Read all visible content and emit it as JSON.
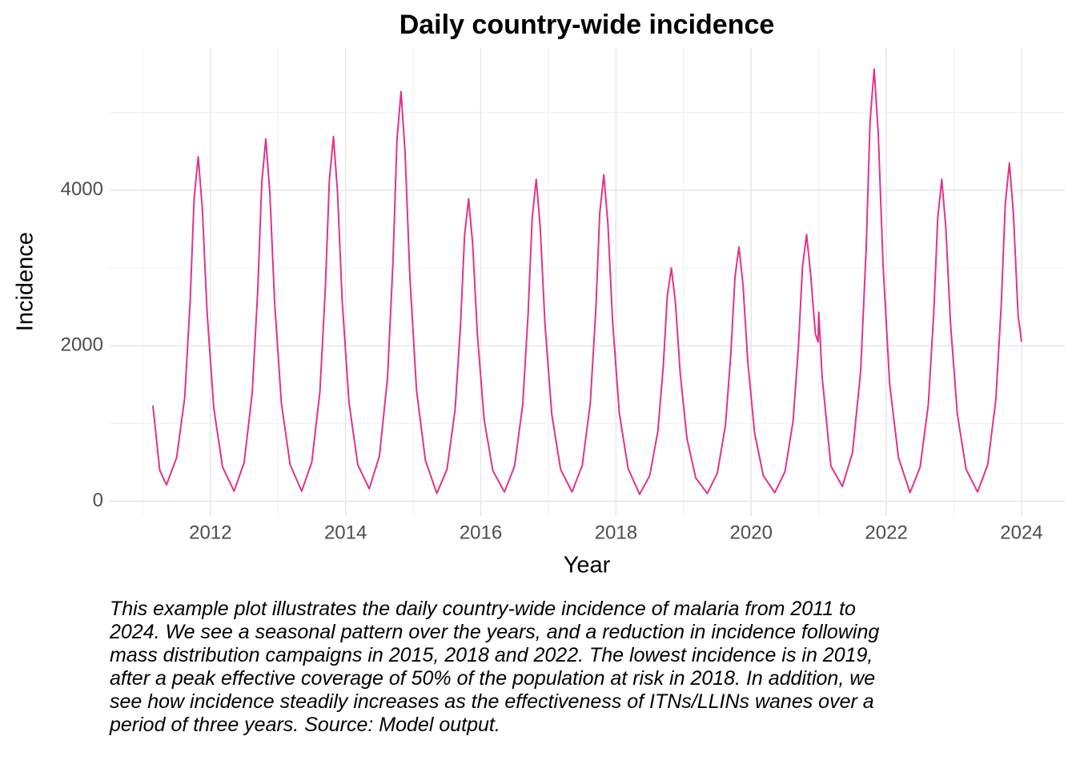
{
  "chart_data": {
    "type": "line",
    "title": "Daily country-wide incidence",
    "x_label": "Year",
    "y_label": "Incidence",
    "series": [
      {
        "color": "#e0338c",
        "x": [
          2011.15,
          2011.25,
          2011.35,
          2011.5,
          2011.62,
          2011.7,
          2011.76,
          2011.82,
          2011.88,
          2011.95,
          2012.05,
          2012.18,
          2012.35,
          2012.5,
          2012.62,
          2012.7,
          2012.76,
          2012.82,
          2012.88,
          2012.95,
          2013.05,
          2013.18,
          2013.35,
          2013.5,
          2013.62,
          2013.7,
          2013.76,
          2013.82,
          2013.88,
          2013.95,
          2014.05,
          2014.18,
          2014.35,
          2014.5,
          2014.62,
          2014.7,
          2014.76,
          2014.82,
          2014.88,
          2014.95,
          2015.05,
          2015.18,
          2015.35,
          2015.5,
          2015.62,
          2015.7,
          2015.76,
          2015.82,
          2015.88,
          2015.95,
          2016.05,
          2016.18,
          2016.35,
          2016.5,
          2016.62,
          2016.7,
          2016.76,
          2016.82,
          2016.88,
          2016.95,
          2017.05,
          2017.18,
          2017.35,
          2017.5,
          2017.62,
          2017.7,
          2017.76,
          2017.82,
          2017.88,
          2017.95,
          2018.05,
          2018.18,
          2018.35,
          2018.5,
          2018.62,
          2018.7,
          2018.76,
          2018.82,
          2018.88,
          2018.95,
          2019.05,
          2019.18,
          2019.35,
          2019.5,
          2019.62,
          2019.7,
          2019.76,
          2019.82,
          2019.88,
          2019.95,
          2020.05,
          2020.18,
          2020.35,
          2020.5,
          2020.62,
          2020.7,
          2020.76,
          2020.82,
          2020.88,
          2020.95,
          2020.99,
          2021.0,
          2021.05,
          2021.18,
          2021.35,
          2021.5,
          2021.62,
          2021.7,
          2021.76,
          2021.82,
          2021.88,
          2021.95,
          2022.05,
          2022.18,
          2022.35,
          2022.5,
          2022.62,
          2022.7,
          2022.76,
          2022.82,
          2022.88,
          2022.95,
          2023.05,
          2023.18,
          2023.35,
          2023.5,
          2023.62,
          2023.7,
          2023.76,
          2023.82,
          2023.88,
          2023.95,
          2024.0
        ],
        "values": [
          1230,
          400,
          210,
          560,
          1330,
          2570,
          3900,
          4430,
          3770,
          2440,
          1200,
          440,
          130,
          500,
          1400,
          2700,
          4100,
          4660,
          3960,
          2560,
          1260,
          470,
          130,
          500,
          1410,
          2720,
          4130,
          4690,
          3990,
          2580,
          1270,
          470,
          160,
          580,
          1580,
          3060,
          4640,
          5270,
          4480,
          2900,
          1420,
          530,
          100,
          410,
          1170,
          2260,
          3420,
          3890,
          3310,
          2140,
          1050,
          390,
          120,
          450,
          1240,
          2400,
          3640,
          4140,
          3520,
          2280,
          1120,
          410,
          120,
          460,
          1260,
          2440,
          3700,
          4200,
          3570,
          2310,
          1130,
          420,
          90,
          330,
          900,
          1740,
          2640,
          3000,
          2550,
          1650,
          810,
          300,
          100,
          360,
          980,
          1900,
          2880,
          3270,
          2780,
          1800,
          880,
          330,
          110,
          380,
          1030,
          1990,
          3020,
          3430,
          2920,
          2150,
          2050,
          2430,
          1600,
          450,
          190,
          630,
          1670,
          3220,
          4890,
          5560,
          4730,
          3060,
          1500,
          560,
          110,
          440,
          1240,
          2400,
          3640,
          4140,
          3520,
          2280,
          1120,
          410,
          120,
          470,
          1310,
          2520,
          3830,
          4350,
          3700,
          2390,
          2050
        ]
      }
    ],
    "xlim": [
      2010.51,
      2024.64
    ],
    "xticks": [
      2012,
      2014,
      2016,
      2018,
      2020,
      2022,
      2024
    ],
    "x_minor_ticks": [
      2011,
      2013,
      2015,
      2017,
      2019,
      2021,
      2023
    ],
    "ylim": [
      -190,
      5830
    ],
    "yticks": [
      0,
      2000,
      4000
    ],
    "y_minor_ticks": [
      1000,
      3000,
      5000
    ],
    "grid": true
  },
  "caption": "This example plot illustrates the daily country-wide incidence of malaria from 2011 to 2024. We see a seasonal pattern over the years, and a reduction in incidence following mass distribution campaigns in 2015, 2018 and 2022. The lowest incidence is in 2019, after a peak effective coverage of 50% of the population at risk in 2018. In addition, we see how incidence steadily increases as the effectiveness of ITNs/LLINs wanes over a period of three years. Source: Model output."
}
